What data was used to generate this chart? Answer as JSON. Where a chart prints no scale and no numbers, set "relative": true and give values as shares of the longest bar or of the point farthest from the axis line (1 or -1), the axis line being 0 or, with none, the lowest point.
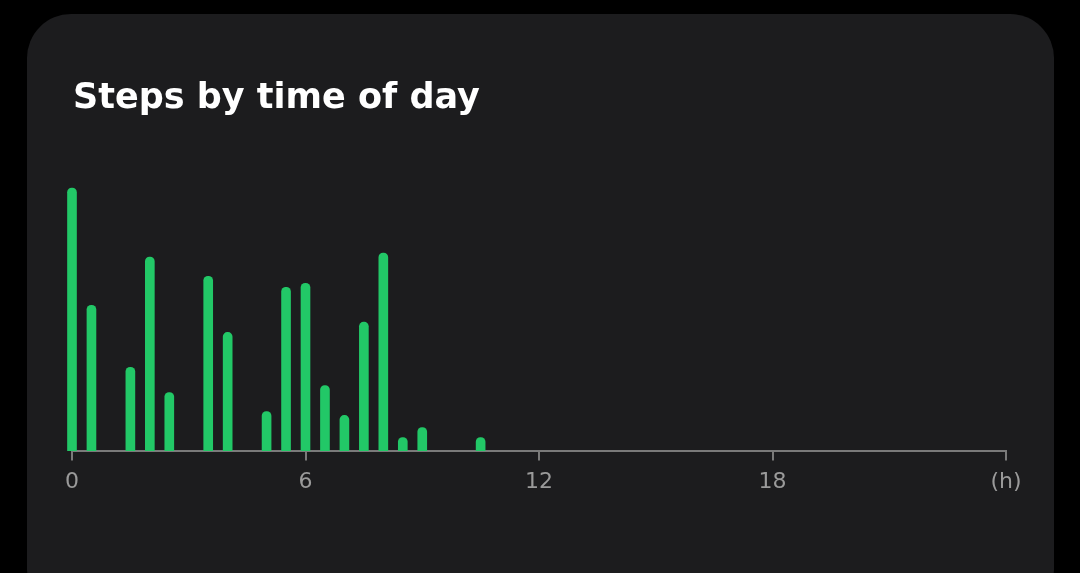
{
  "chart_data": {
    "type": "bar",
    "title": "Steps by time of day",
    "relative": true,
    "color": "#22c867",
    "x": [
      0,
      0.5,
      1.5,
      2,
      2.5,
      3.5,
      4,
      5,
      5.5,
      6,
      6.5,
      7,
      7.5,
      8,
      8.5,
      9,
      10.5
    ],
    "values": [
      1,
      0.553,
      0.317,
      0.737,
      0.221,
      0.664,
      0.45,
      0.149,
      0.622,
      0.637,
      0.248,
      0.134,
      0.489,
      0.752,
      0.05,
      0.088,
      0.05
    ],
    "xlim": [
      0,
      24
    ],
    "xticks": [
      0,
      6,
      12,
      18,
      {
        "value": 24,
        "label": "(h)"
      }
    ]
  }
}
